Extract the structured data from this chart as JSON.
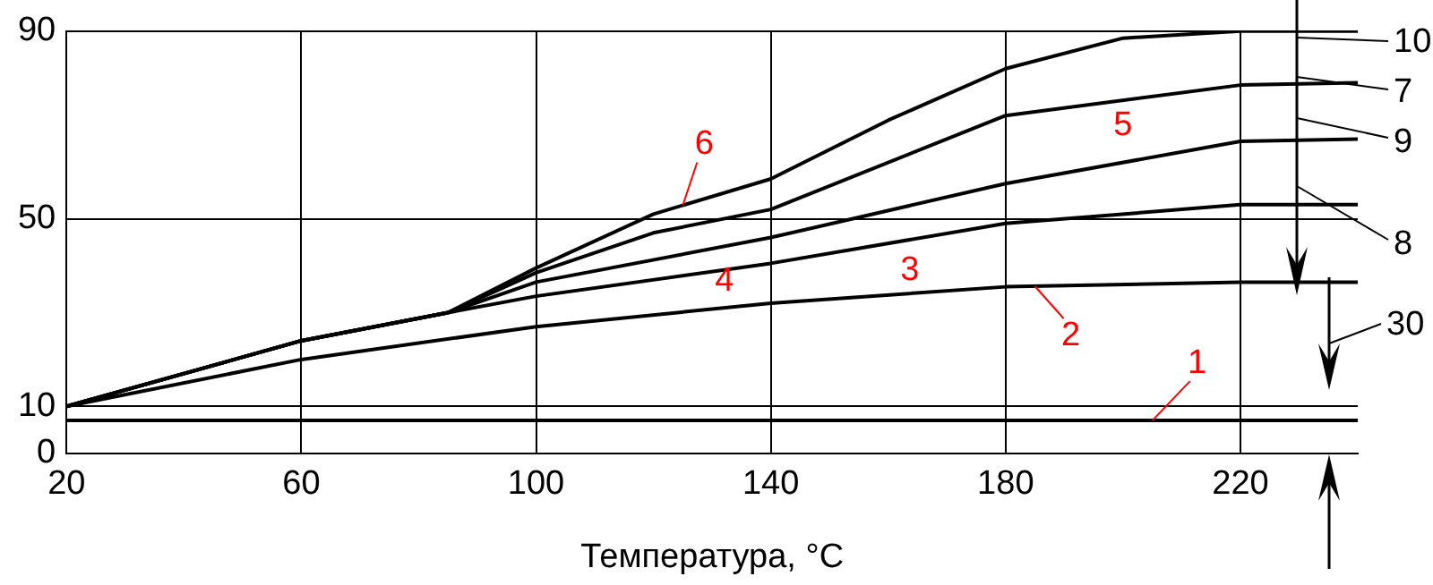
{
  "chart_data": {
    "type": "line",
    "xlabel": "Температура, °C",
    "xlim": [
      20,
      240
    ],
    "xticks": [
      20,
      60,
      100,
      140,
      180,
      220
    ],
    "ylim": [
      0,
      90
    ],
    "yticks": [
      0,
      10,
      50,
      90
    ],
    "grid": true,
    "legend": false,
    "marker": "none",
    "series": [
      {
        "name": "1",
        "color": "#000000",
        "x": [
          20,
          240
        ],
        "values": [
          7,
          7
        ]
      },
      {
        "name": "2",
        "color": "#000000",
        "x": [
          20,
          60,
          100,
          140,
          180,
          220,
          240
        ],
        "values": [
          10,
          20,
          27,
          32,
          35.5,
          36.5,
          36.5
        ]
      },
      {
        "name": "3",
        "color": "#000000",
        "x": [
          20,
          60,
          85,
          100,
          140,
          180,
          220,
          240
        ],
        "values": [
          10,
          24,
          30,
          33.5,
          40.5,
          49,
          53,
          53
        ]
      },
      {
        "name": "4",
        "color": "#000000",
        "x": [
          20,
          60,
          85,
          100,
          140,
          180,
          220,
          240
        ],
        "values": [
          10,
          24,
          30,
          36.5,
          46,
          57.5,
          66.5,
          67
        ]
      },
      {
        "name": "5",
        "color": "#000000",
        "x": [
          20,
          60,
          85,
          100,
          120,
          140,
          180,
          220,
          240
        ],
        "values": [
          10,
          24,
          30,
          38.5,
          47,
          52,
          72,
          78.5,
          79
        ]
      },
      {
        "name": "6",
        "color": "#000000",
        "x": [
          20,
          60,
          85,
          100,
          120,
          140,
          160,
          180,
          200,
          220,
          240
        ],
        "values": [
          10,
          24,
          30,
          39.5,
          51,
          58.5,
          71,
          82,
          88.5,
          90,
          90
        ]
      }
    ],
    "annotations": [
      "10",
      "7",
      "9",
      "8",
      "30"
    ]
  }
}
